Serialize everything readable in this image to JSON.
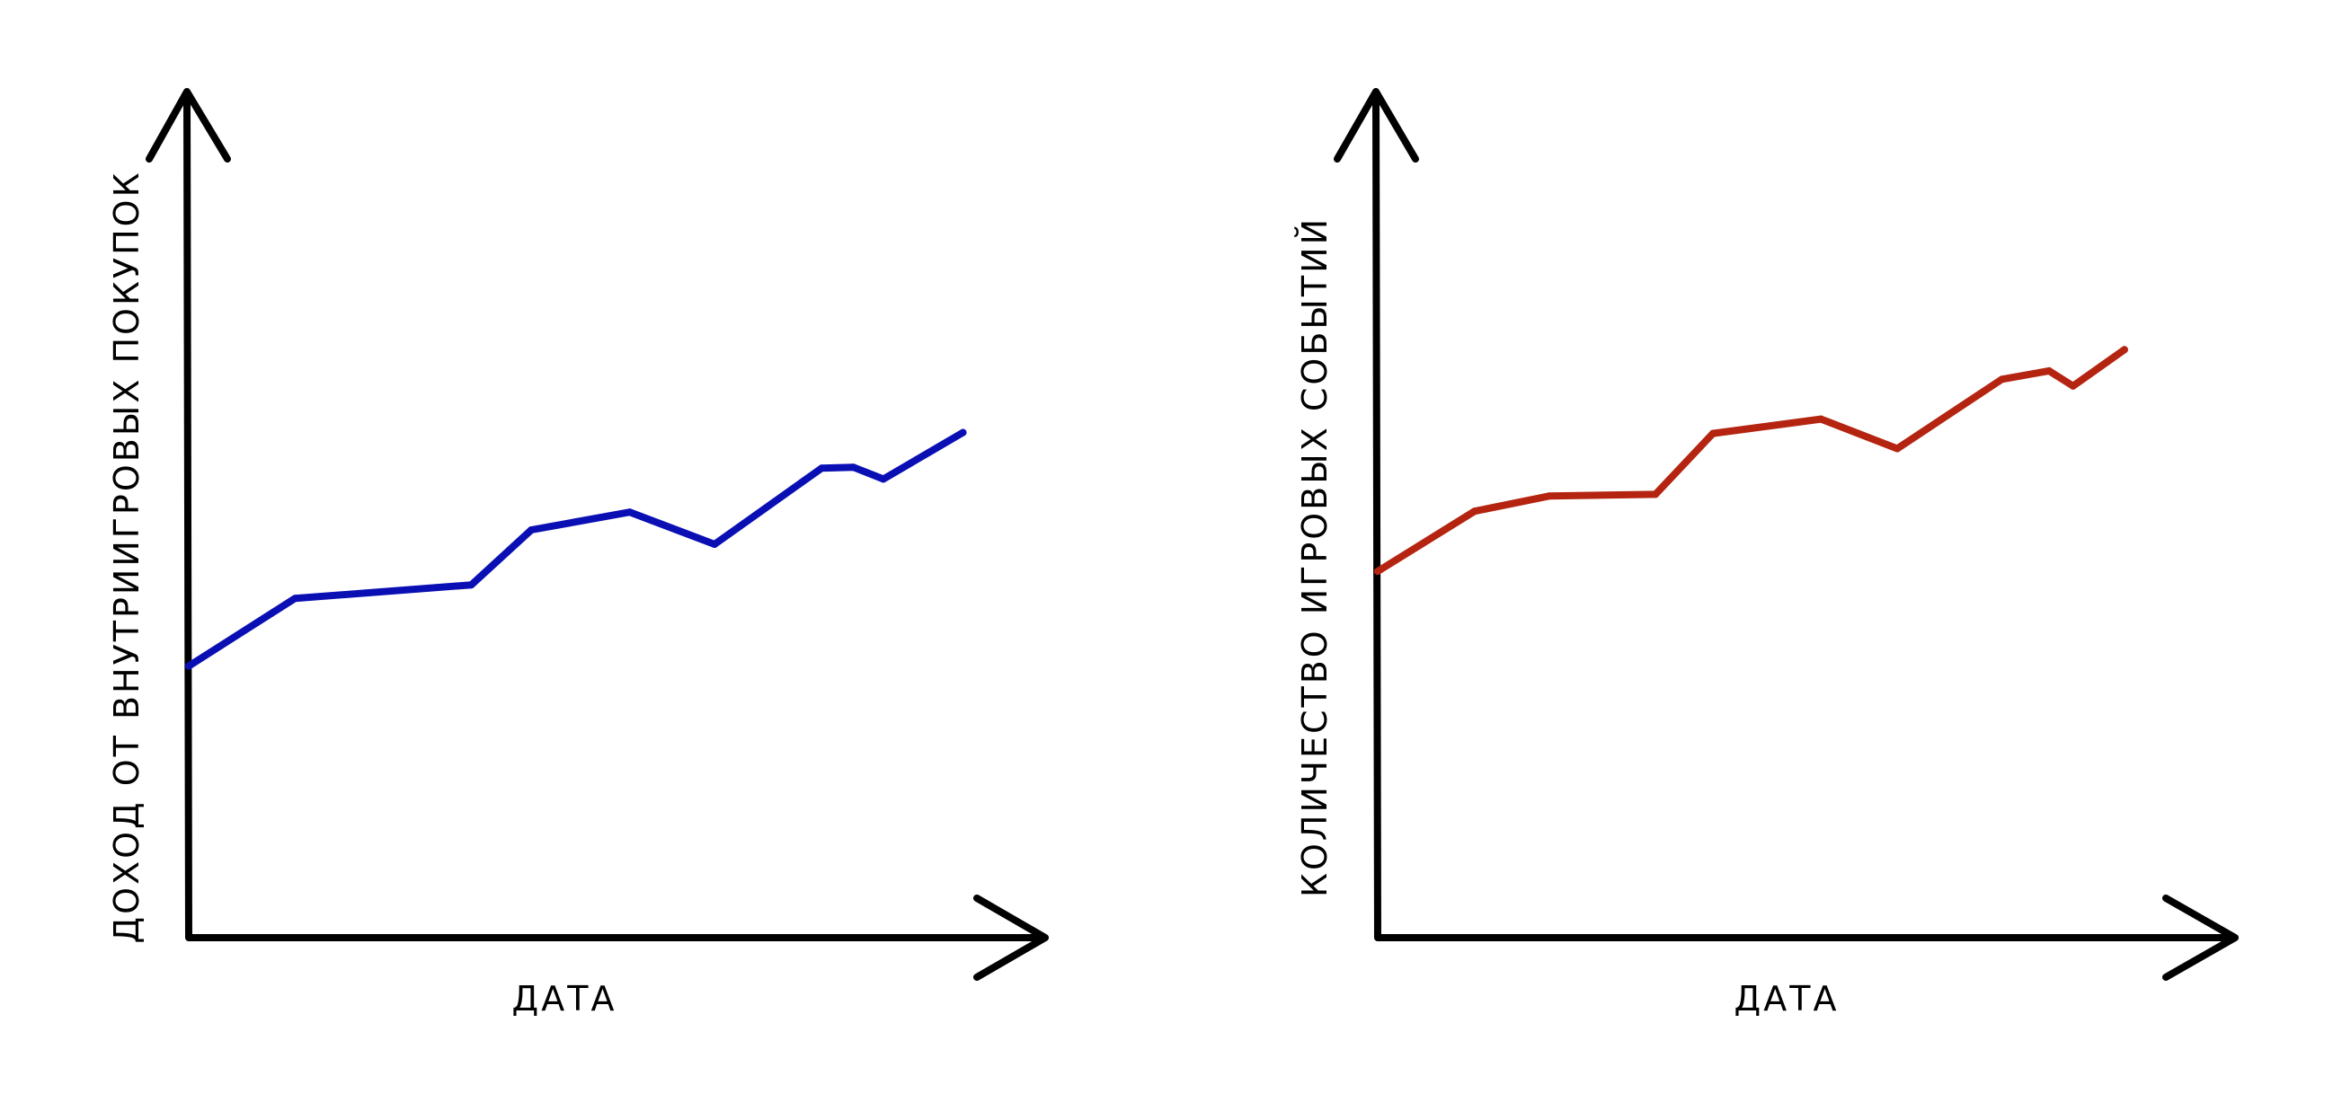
{
  "chart_data": [
    {
      "type": "line",
      "title": "",
      "xlabel": "ДАТА",
      "ylabel": "ДОХОД ОТ ВНУТРИИГРОВЫХ ПОКУПОК",
      "grid": false,
      "legend": "none",
      "xlim": [
        0,
        100
      ],
      "ylim": [
        0,
        100
      ],
      "color": "#0a0fb4",
      "series": [
        {
          "x": [
            0,
            12.4,
            33.0,
            40.0,
            51.5,
            61.4,
            73.9,
            77.6,
            81.1,
            90.4
          ],
          "y": [
            32.1,
            40.1,
            41.7,
            48.2,
            50.3,
            46.5,
            55.5,
            55.6,
            54.2,
            59.7
          ]
        }
      ]
    },
    {
      "type": "line",
      "title": "",
      "xlabel": "ДАТА",
      "ylabel": "КОЛИЧЕСТВО ИГРОВЫХ СОБЫТИЙ",
      "grid": false,
      "legend": "none",
      "xlim": [
        0,
        100
      ],
      "ylim": [
        0,
        100
      ],
      "color": "#b42410",
      "series": [
        {
          "x": [
            0,
            11.3,
            20.0,
            32.4,
            39.1,
            51.7,
            60.6,
            72.8,
            78.3,
            81.1,
            87.1
          ],
          "y": [
            43.3,
            50.4,
            52.2,
            52.4,
            59.6,
            61.3,
            57.8,
            66.0,
            67.0,
            65.2,
            69.5
          ]
        }
      ]
    }
  ]
}
